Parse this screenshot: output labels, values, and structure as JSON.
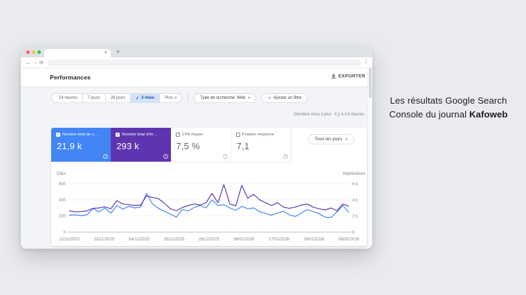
{
  "colors": {
    "accent_blue": "#4285f4",
    "accent_purple": "#5e35b1",
    "selected_chip_bg": "#d2e3fc",
    "page_bg": "#e9ebef"
  },
  "icons": {
    "check": "✓",
    "caret_down": "▾",
    "close": "×",
    "plus": "+",
    "back": "←",
    "forward": "→",
    "reload": "⟳",
    "menu_dots": "⋮"
  },
  "annotation": {
    "line1": "Les résultats Google Search",
    "line2_text": "Console du journal ",
    "line2_bold": "Kafoweb"
  },
  "app": {
    "title": "Performances",
    "export_label": "EXPORTER",
    "last_update": "Dernière mise à jour : il y a 4,5 heures"
  },
  "filters": {
    "ranges": [
      {
        "label": "24 heures",
        "selected": false
      },
      {
        "label": "7 jours",
        "selected": false
      },
      {
        "label": "28 jours",
        "selected": false
      },
      {
        "label": "3 mois",
        "selected": true,
        "check": "✓"
      },
      {
        "label": "Plus",
        "selected": false,
        "caret": "▾"
      }
    ],
    "search_type_label": "Type de recherche: Web",
    "search_type_caret": "▾",
    "add_filter": {
      "icon": "+",
      "label": "Ajouter un filtre"
    },
    "granularity_label": "Tous les jours",
    "granularity_caret": "▾"
  },
  "metric_cards": [
    {
      "label": "Nombre total de c…",
      "value": "21,9 k",
      "checked": true,
      "bg": "#4285f4",
      "help": "?"
    },
    {
      "label": "Nombre total d'im…",
      "value": "293 k",
      "checked": true,
      "bg": "#5e35b1",
      "help": "?"
    },
    {
      "label": "CTR moyen",
      "value": "7,5 %",
      "checked": false,
      "bg": "#ffffff",
      "help": "?"
    },
    {
      "label": "Position moyenne",
      "value": "7,1",
      "checked": false,
      "bg": "#ffffff",
      "help": "?"
    }
  ],
  "chart_data": {
    "type": "line",
    "grid": true,
    "legend": "none",
    "left_axis": {
      "label": "Clics",
      "ticks": [
        "600",
        "400",
        "200",
        "0"
      ],
      "max": 600
    },
    "right_axis": {
      "label": "Impressions",
      "ticks": [
        "6 k",
        "4 k",
        "2 k",
        "0"
      ],
      "max": 6000
    },
    "x_ticks": [
      "12/11/2025",
      "23/11/2025",
      "04/12/2025",
      "15/12/2025",
      "26/12/2025",
      "06/01/2026",
      "17/01/2026",
      "28/01/2026",
      "08/02/2026"
    ],
    "series": [
      {
        "name": "Clics",
        "axis": "left",
        "color": "#4285f4",
        "values": [
          210,
          215,
          205,
          215,
          295,
          250,
          300,
          235,
          330,
          285,
          320,
          300,
          310,
          480,
          350,
          295,
          260,
          225,
          185,
          280,
          265,
          305,
          330,
          300,
          400,
          330,
          340,
          300,
          270,
          320,
          290,
          300,
          255,
          230,
          210,
          235,
          260,
          215,
          195,
          235,
          280,
          255,
          230,
          185,
          180,
          250,
          330,
          245
        ]
      },
      {
        "name": "Impressions",
        "axis": "right",
        "color": "#5e35b1",
        "values": [
          2650,
          2500,
          2550,
          2650,
          2950,
          3000,
          3150,
          2900,
          3900,
          3500,
          3400,
          3300,
          3350,
          4500,
          4300,
          4150,
          3600,
          2900,
          2650,
          3050,
          3300,
          3500,
          3350,
          3650,
          4800,
          3650,
          5900,
          3500,
          3250,
          5800,
          4200,
          4700,
          4000,
          3650,
          3300,
          3650,
          3100,
          2950,
          3100,
          3350,
          3500,
          3100,
          2900,
          2750,
          3000,
          2650,
          3500,
          3200
        ]
      }
    ]
  }
}
